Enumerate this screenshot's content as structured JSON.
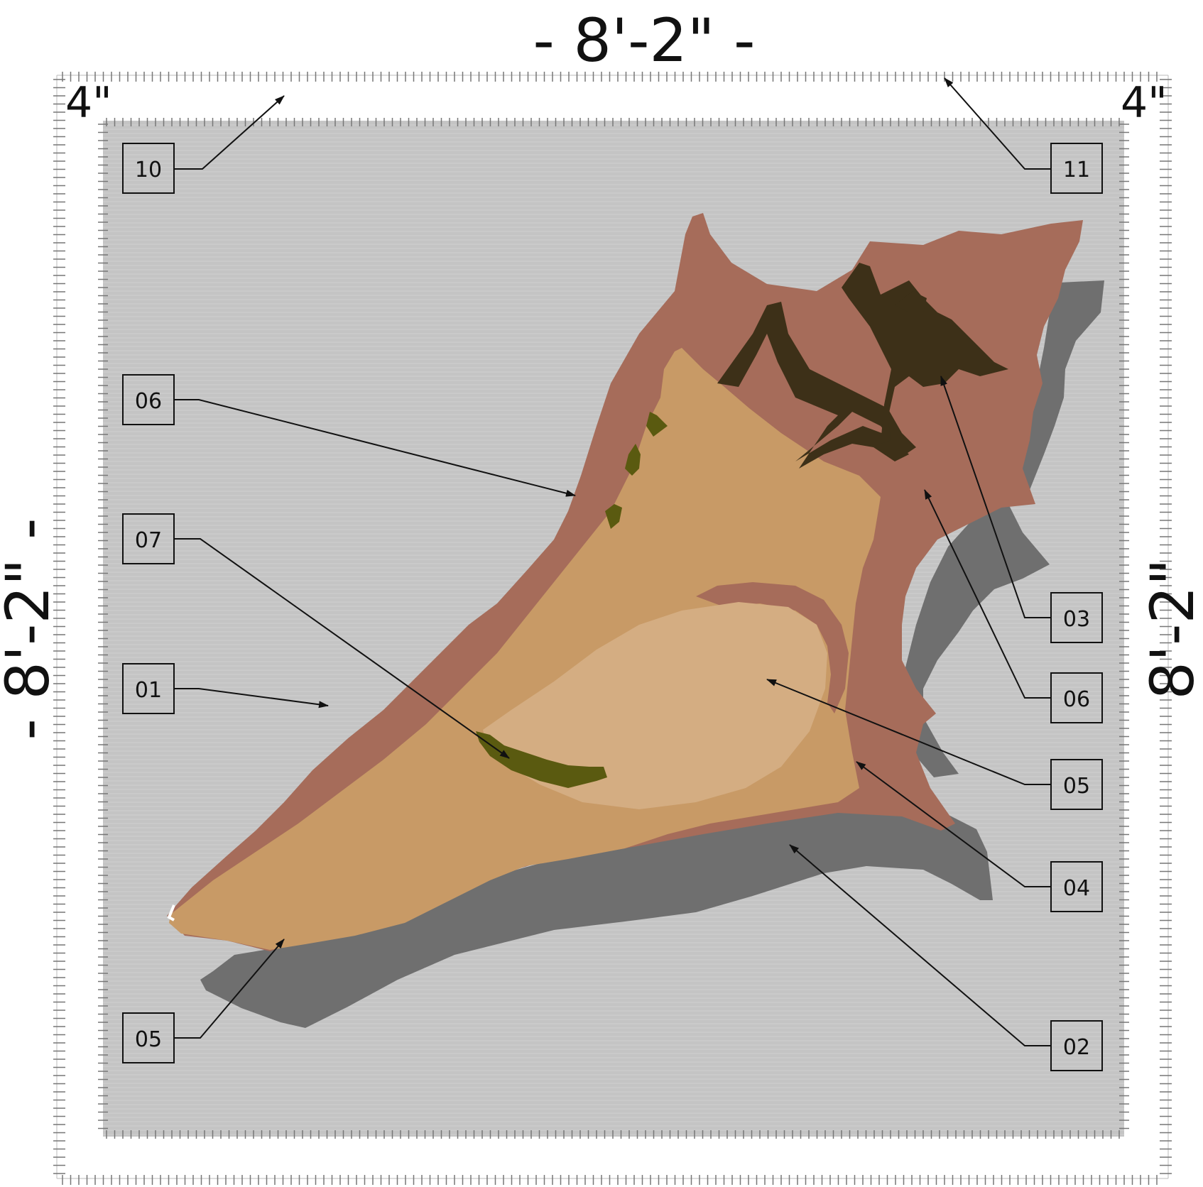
{
  "drawing": {
    "overall_width_label": "- 8'-2\" -",
    "overall_height_label": "- 8'-2\" -",
    "overall_height_label_right": "8'-2\"",
    "border_left_label": "4\"",
    "border_right_label": "4\""
  },
  "colors": {
    "background_field": "#c4c4c4",
    "border_strip": "#ffffff",
    "rust": "#a66c5a",
    "tan": "#c89a66",
    "light_tan": "#d4ad82",
    "olive": "#5a5a10",
    "dark_brown": "#3d3018",
    "charcoal": "#6f6f6f",
    "line": "#111111"
  },
  "callouts": [
    {
      "id": "callout-10",
      "label": "10"
    },
    {
      "id": "callout-11",
      "label": "11"
    },
    {
      "id": "callout-06-left",
      "label": "06"
    },
    {
      "id": "callout-07",
      "label": "07"
    },
    {
      "id": "callout-01",
      "label": "01"
    },
    {
      "id": "callout-05-left",
      "label": "05"
    },
    {
      "id": "callout-03",
      "label": "03"
    },
    {
      "id": "callout-06-right",
      "label": "06"
    },
    {
      "id": "callout-05-right",
      "label": "05"
    },
    {
      "id": "callout-04",
      "label": "04"
    },
    {
      "id": "callout-02",
      "label": "02"
    }
  ]
}
